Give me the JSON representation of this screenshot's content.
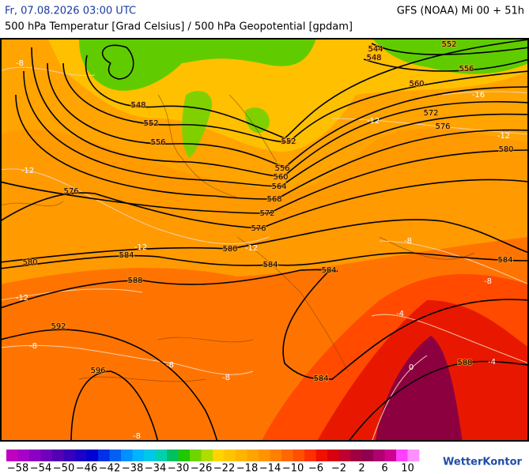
{
  "header": {
    "datetime": "Fr, 07.08.2026 03:00 UTC",
    "model_run": "GFS (NOAA) Mi 00 + 51h",
    "subtitle": "500 hPa Temperatur [Grad Celsius] / 500 hPa Geopotential [gpdam]"
  },
  "map": {
    "geopotential_labels": [
      "544",
      "548",
      "552",
      "556",
      "560",
      "572",
      "576",
      "580",
      "548",
      "552",
      "556",
      "552",
      "556",
      "560",
      "564",
      "568",
      "572",
      "576",
      "576",
      "580",
      "584",
      "580",
      "584",
      "584",
      "584",
      "588",
      "592",
      "596",
      "584",
      "588"
    ],
    "temperature_labels": [
      "-8",
      "-12",
      "-12",
      "-12",
      "-12",
      "-8",
      "-8",
      "-8",
      "-8",
      "-12",
      "-16",
      "-12",
      "-8",
      "-8",
      "-4",
      "-4",
      "0"
    ]
  },
  "colorbar": {
    "colors": [
      "#c000c0",
      "#a800c8",
      "#8c00c4",
      "#7000bc",
      "#5400b4",
      "#3800bc",
      "#1c00c8",
      "#0000d0",
      "#0030e8",
      "#0060f4",
      "#0090ff",
      "#00b4ff",
      "#00c8e8",
      "#00d0b0",
      "#00c060",
      "#20c800",
      "#70d400",
      "#b0dc00",
      "#ffd400",
      "#ffc400",
      "#ffb400",
      "#ffa400",
      "#ff9400",
      "#ff8000",
      "#ff6800",
      "#ff5000",
      "#ff3000",
      "#f01000",
      "#d80010",
      "#c00030",
      "#a00040",
      "#900050",
      "#b00070",
      "#d00090",
      "#ff40ff",
      "#ff90ff"
    ],
    "labels": [
      "−58",
      "−54",
      "−50",
      "−46",
      "−42",
      "−38",
      "−34",
      "−30",
      "−26",
      "−22",
      "−18",
      "−14",
      "−10",
      "−6",
      "−2",
      "2",
      "6",
      "10"
    ]
  },
  "logo": "WetterKontor"
}
